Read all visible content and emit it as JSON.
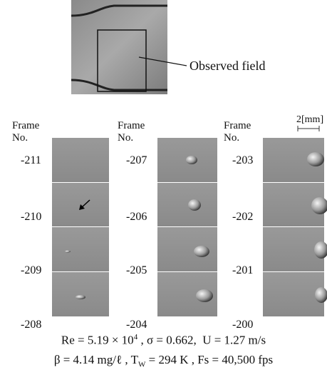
{
  "top_figure": {
    "label": "Observed field"
  },
  "scale_bar": "2[mm]",
  "columns": [
    {
      "header": [
        "Frame",
        "No."
      ],
      "frames": [
        "-211",
        "-210",
        "-209",
        "-208"
      ]
    },
    {
      "header": [
        "Frame",
        "No."
      ],
      "frames": [
        "-207",
        "-206",
        "-205",
        "-204"
      ]
    },
    {
      "header": [
        "Frame",
        "No."
      ],
      "frames": [
        "-203",
        "-202",
        "-201",
        "-200"
      ]
    }
  ],
  "caption": {
    "line1": [
      "Re = 5.19 × 10",
      "4",
      " , σ = 0.662,  U = 1.27 m/s"
    ],
    "line2": [
      "β = 4.14 mg/ℓ , T",
      "W",
      " = 294 K , Fs = 40,500 fps"
    ]
  }
}
